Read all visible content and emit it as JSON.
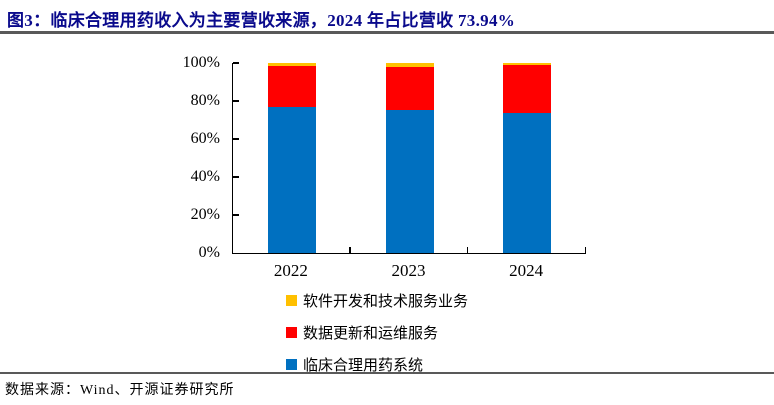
{
  "title": "图3：临床合理用药收入为主要营收来源，2024 年占比营收 73.94%",
  "source_note": "数据来源：Wind、开源证券研究所",
  "colors": {
    "title": "#0A0A8C",
    "rule": "#595959",
    "axis": "#000000",
    "series_blue": "#0070C0",
    "series_red": "#FF0000",
    "series_yellow": "#FFC000"
  },
  "chart_data": {
    "type": "bar",
    "stacked": true,
    "title": "",
    "xlabel": "",
    "ylabel": "",
    "categories": [
      "2022",
      "2023",
      "2024"
    ],
    "series": [
      {
        "name": "临床合理用药系统",
        "color": "#0070C0",
        "values": [
          77.0,
          75.1,
          73.94
        ]
      },
      {
        "name": "数据更新和运维服务",
        "color": "#FF0000",
        "values": [
          21.5,
          22.6,
          25.0
        ]
      },
      {
        "name": "软件开发和技术服务业务",
        "color": "#FFC000",
        "values": [
          1.5,
          2.3,
          1.06
        ]
      }
    ],
    "ylim": [
      0,
      100
    ],
    "ytick_labels": [
      "0%",
      "20%",
      "40%",
      "60%",
      "80%",
      "100%"
    ],
    "grid": false,
    "legend_position": "bottom",
    "legend_order": [
      "软件开发和技术服务业务",
      "数据更新和运维服务",
      "临床合理用药系统"
    ]
  }
}
